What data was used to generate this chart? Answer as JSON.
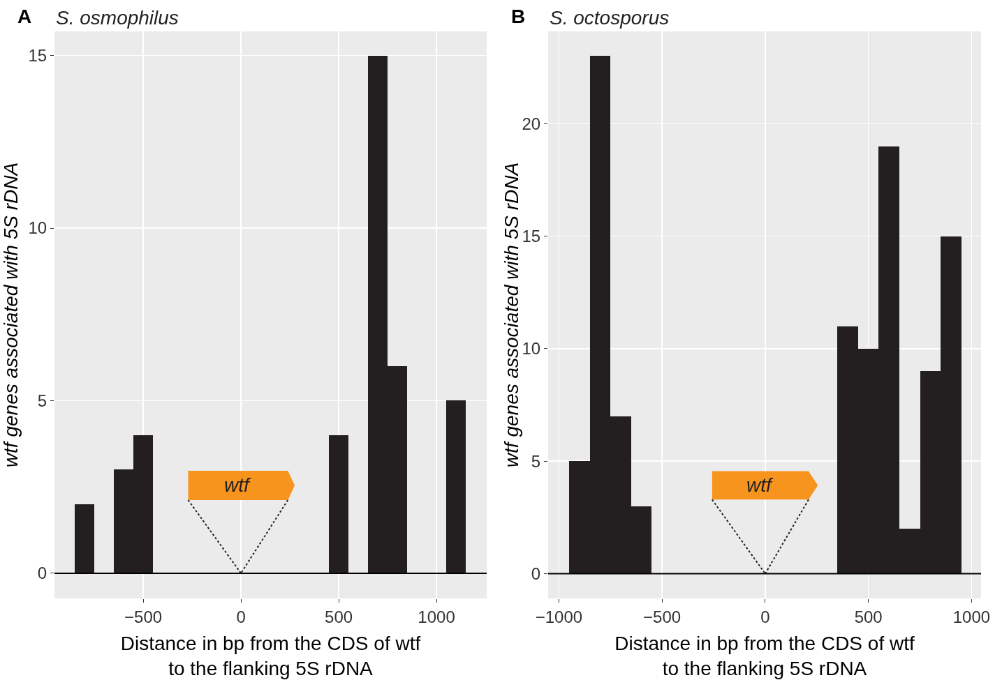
{
  "chart_data": [
    {
      "type": "histogram",
      "title": "S. osmophilus",
      "xlabel": "Distance in bp from the CDS of wtf\nto the flanking 5S rDNA",
      "ylabel": "wtf genes associated with 5S rDNA",
      "annotations": [
        "A",
        "wtf"
      ],
      "bins": [
        -850,
        -750,
        -650,
        -550,
        -450,
        -350,
        -250,
        -150,
        -50,
        50,
        150,
        250,
        350,
        450,
        550,
        650,
        750,
        850,
        950,
        1050,
        1150
      ],
      "values": [
        2,
        0,
        3,
        4,
        0,
        0,
        0,
        0,
        0,
        0,
        0,
        0,
        0,
        4,
        0,
        15,
        6,
        0,
        0,
        5
      ],
      "color": "#231f20",
      "xlim": [
        -954,
        1257
      ],
      "ylim": [
        -0.73,
        15.7
      ],
      "xticks": [
        -500,
        0,
        500,
        1000
      ],
      "yticks": [
        0,
        5,
        10,
        15
      ],
      "grid": true,
      "ref_lines": [
        {
          "axis": "y",
          "value": 0,
          "color": "#000000"
        }
      ]
    },
    {
      "type": "histogram",
      "title": "S. octosporus",
      "xlabel": "Distance in bp from the CDS of wtf\nto the flanking 5S rDNA",
      "ylabel": "wtf genes associated with 5S rDNA",
      "annotations": [
        "B",
        "wtf"
      ],
      "bins": [
        -950,
        -850,
        -750,
        -650,
        -550,
        -450,
        -350,
        -250,
        -150,
        -50,
        50,
        150,
        250,
        350,
        450,
        550,
        650,
        750,
        850,
        950
      ],
      "values": [
        5,
        23,
        7,
        3,
        0,
        0,
        0,
        0,
        0,
        0,
        0,
        0,
        0,
        11,
        10,
        19,
        2,
        9,
        15
      ],
      "color": "#231f20",
      "xlim": [
        -1052,
        1046
      ],
      "ylim": [
        -1.1,
        24.1
      ],
      "xticks": [
        -1000,
        -500,
        0,
        500,
        1000
      ],
      "yticks": [
        0,
        5,
        10,
        15,
        20
      ],
      "grid": true,
      "ref_lines": [
        {
          "axis": "y",
          "value": 0,
          "color": "#000000"
        }
      ]
    }
  ]
}
